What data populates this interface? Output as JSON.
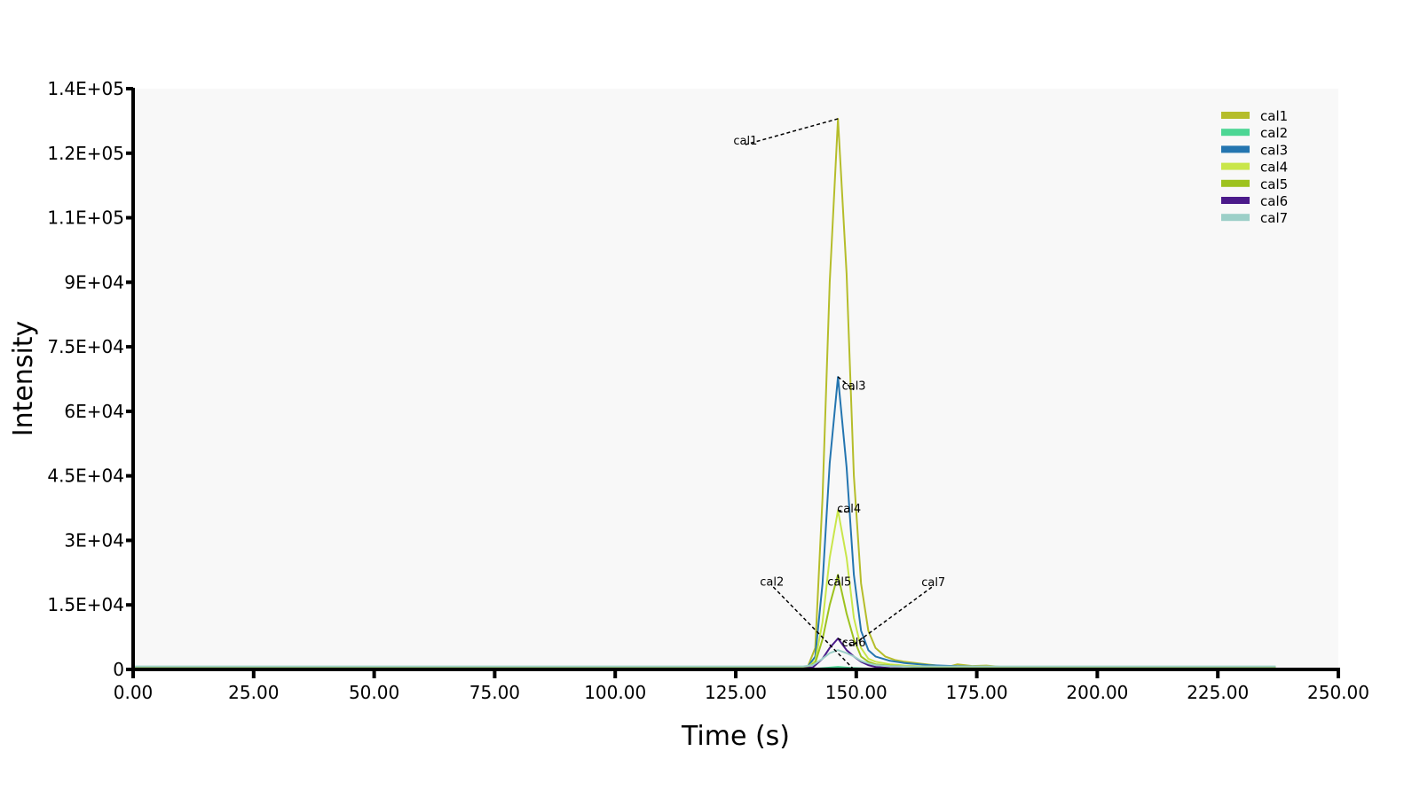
{
  "chart_data": {
    "type": "line",
    "title": "",
    "xlabel": "Time (s)",
    "ylabel": "Intensity",
    "xlim": [
      0,
      250
    ],
    "ylim": [
      0,
      135000
    ],
    "x_ticks": [
      "0.00",
      "25.00",
      "50.00",
      "75.00",
      "100.00",
      "125.00",
      "150.00",
      "175.00",
      "200.00",
      "225.00",
      "250.00"
    ],
    "x_tick_values": [
      0,
      25,
      50,
      75,
      100,
      125,
      150,
      175,
      200,
      225,
      250
    ],
    "y_ticks": [
      "0",
      "1.5E+04",
      "3E+04",
      "4.5E+04",
      "6E+04",
      "7.5E+04",
      "9E+04",
      "1.1E+05",
      "1.2E+05",
      "1.4E+05"
    ],
    "y_tick_values": [
      0,
      15000,
      30000,
      45000,
      60000,
      75000,
      90000,
      105000,
      120000,
      135000
    ],
    "grid": false,
    "legend_position": "top-right",
    "plot_background": "#f8f8f8",
    "series": [
      {
        "name": "cal1",
        "color": "#b5bd2a",
        "x": [
          0,
          139,
          140,
          141.5,
          143,
          144.5,
          146.2,
          148,
          149.5,
          151,
          152.5,
          154,
          156,
          158,
          160,
          163,
          166,
          169,
          171,
          174,
          177,
          180,
          185,
          237
        ],
        "y": [
          600,
          600,
          800,
          5000,
          40000,
          90000,
          128000,
          92000,
          45000,
          20000,
          9000,
          5000,
          3000,
          2200,
          1800,
          1400,
          1000,
          600,
          1200,
          800,
          900,
          600,
          600,
          600
        ]
      },
      {
        "name": "cal2",
        "color": "#4cd694",
        "x": [
          0,
          139,
          142,
          144,
          146.2,
          148.5,
          151,
          154,
          157,
          237
        ],
        "y": [
          150,
          150,
          200,
          400,
          600,
          400,
          250,
          150,
          150,
          150
        ]
      },
      {
        "name": "cal3",
        "color": "#2475b0",
        "x": [
          0,
          139,
          140,
          141.5,
          143,
          144.5,
          146.2,
          148,
          149.5,
          151,
          152.5,
          154,
          157,
          160,
          165,
          170,
          180,
          237
        ],
        "y": [
          500,
          500,
          700,
          3000,
          20000,
          48000,
          68000,
          47000,
          22000,
          9000,
          4500,
          3000,
          2000,
          1500,
          1000,
          800,
          600,
          500
        ]
      },
      {
        "name": "cal4",
        "color": "#c9e64a",
        "x": [
          0,
          139,
          140,
          141.5,
          143,
          144.5,
          146.2,
          148,
          149.5,
          151,
          152.5,
          154,
          157,
          160,
          165,
          170,
          237
        ],
        "y": [
          400,
          400,
          600,
          2000,
          11000,
          26000,
          37000,
          26000,
          12000,
          5000,
          2500,
          1800,
          1200,
          900,
          700,
          500,
          400
        ]
      },
      {
        "name": "cal5",
        "color": "#9dc21e",
        "x": [
          0,
          139,
          140,
          141.5,
          143,
          144.5,
          146.2,
          148,
          149.5,
          151,
          152.5,
          154,
          157,
          160,
          165,
          170,
          237
        ],
        "y": [
          400,
          400,
          600,
          1500,
          7000,
          15000,
          22000,
          13000,
          7000,
          3000,
          1800,
          1200,
          900,
          700,
          500,
          400,
          400
        ]
      },
      {
        "name": "cal6",
        "color": "#4b1a8a",
        "x": [
          0,
          139,
          141,
          143,
          144.5,
          146.2,
          148,
          149.5,
          151,
          152.5,
          154,
          157,
          160,
          237
        ],
        "y": [
          200,
          200,
          500,
          2500,
          5000,
          7200,
          4500,
          3000,
          1800,
          1000,
          600,
          300,
          200,
          200
        ]
      },
      {
        "name": "cal7",
        "color": "#9ccfc8",
        "x": [
          0,
          139,
          141,
          143,
          144.5,
          146.2,
          148,
          149.5,
          151,
          152.5,
          154,
          157,
          160,
          237
        ],
        "y": [
          700,
          700,
          1000,
          2500,
          3800,
          4500,
          3800,
          3000,
          2000,
          1400,
          1000,
          800,
          700,
          700
        ]
      }
    ],
    "annotations": [
      {
        "text": "cal1",
        "series": "cal1",
        "peak_x": 146.2,
        "peak_y": 128000,
        "label_x": 127,
        "label_y": 122000
      },
      {
        "text": "cal2",
        "series": "cal2",
        "peak_x": 149.5,
        "peak_y": 0,
        "label_x": 132.5,
        "label_y": 19500
      },
      {
        "text": "cal3",
        "series": "cal3",
        "peak_x": 146.2,
        "peak_y": 68000,
        "label_x": 149.5,
        "label_y": 65000
      },
      {
        "text": "cal4",
        "series": "cal4",
        "peak_x": 146.2,
        "peak_y": 37000,
        "label_x": 148.5,
        "label_y": 36500
      },
      {
        "text": "cal5",
        "series": "cal5",
        "peak_x": 146.2,
        "peak_y": 22000,
        "label_x": 146.5,
        "label_y": 19500
      },
      {
        "text": "cal6",
        "series": "cal6",
        "peak_x": 146.2,
        "peak_y": 7200,
        "label_x": 149.5,
        "label_y": 5400
      },
      {
        "text": "cal7",
        "series": "cal7",
        "peak_x": 149.5,
        "peak_y": 5800,
        "label_x": 166,
        "label_y": 19400
      }
    ]
  }
}
